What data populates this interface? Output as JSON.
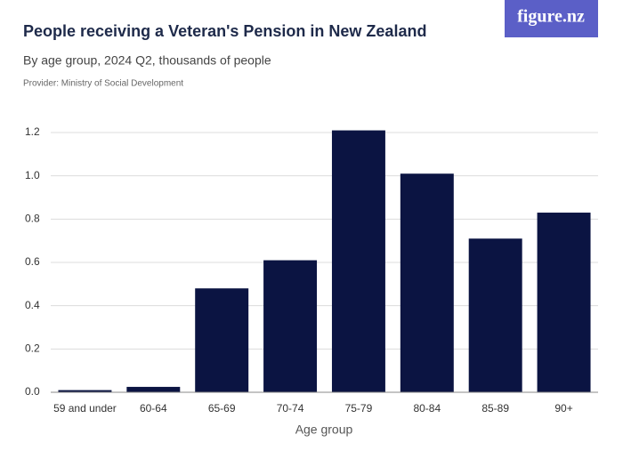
{
  "chart_data": {
    "type": "bar",
    "title": "People receiving a Veteran's Pension in New Zealand",
    "subtitle": "By age group, 2024 Q2, thousands of people",
    "provider": "Provider: Ministry of Social Development",
    "logo": "figure.nz",
    "x_label": "Age group",
    "categories": [
      "59 and under",
      "60-64",
      "65-69",
      "70-74",
      "75-79",
      "80-84",
      "85-89",
      "90+"
    ],
    "values": [
      0.01,
      0.025,
      0.48,
      0.61,
      1.21,
      1.01,
      0.71,
      0.83
    ],
    "color": "#0b1442",
    "ylim": [
      0,
      1.2
    ],
    "yticks": [
      {
        "value": 0,
        "label": "0.0"
      },
      0.2,
      0.4,
      0.6,
      0.8,
      {
        "value": 1,
        "label": "1.0"
      },
      1.2
    ],
    "grid": true
  }
}
